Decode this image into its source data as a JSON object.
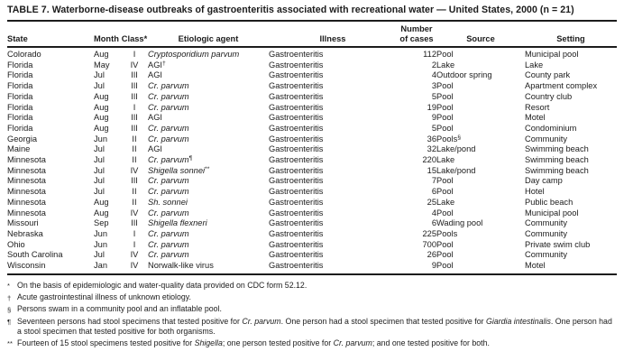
{
  "title": "TABLE 7. Waterborne-disease outbreaks of gastroenteritis associated with recreational water — United States, 2000 (n = 21)",
  "table": {
    "columns": [
      {
        "key": "state",
        "label": "State"
      },
      {
        "key": "month",
        "label": "Month"
      },
      {
        "key": "class",
        "label": "Class*"
      },
      {
        "key": "agent",
        "label": "Etiologic agent"
      },
      {
        "key": "illness",
        "label": "Illness"
      },
      {
        "key": "cases",
        "label": "Number\nof cases"
      },
      {
        "key": "source",
        "label": "Source"
      },
      {
        "key": "setting",
        "label": "Setting"
      }
    ],
    "rows": [
      {
        "state": "Colorado",
        "month": "Aug",
        "class": "I",
        "agent": "Cryptosporidium parvum",
        "agent_italic": true,
        "agent_sup": "",
        "illness": "Gastroenteritis",
        "cases": "112",
        "source": "Pool",
        "source_sup": "",
        "setting": "Municipal pool"
      },
      {
        "state": "Florida",
        "month": "May",
        "class": "IV",
        "agent": "AGI",
        "agent_italic": false,
        "agent_sup": "†",
        "illness": "Gastroenteritis",
        "cases": "2",
        "source": "Lake",
        "source_sup": "",
        "setting": "Lake"
      },
      {
        "state": "Florida",
        "month": "Jul",
        "class": "III",
        "agent": "AGI",
        "agent_italic": false,
        "agent_sup": "",
        "illness": "Gastroenteritis",
        "cases": "4",
        "source": "Outdoor spring",
        "source_sup": "",
        "setting": "County park"
      },
      {
        "state": "Florida",
        "month": "Jul",
        "class": "III",
        "agent": "Cr. parvum",
        "agent_italic": true,
        "agent_sup": "",
        "illness": "Gastroenteritis",
        "cases": "3",
        "source": "Pool",
        "source_sup": "",
        "setting": "Apartment complex"
      },
      {
        "state": "Florida",
        "month": "Aug",
        "class": "III",
        "agent": "Cr. parvum",
        "agent_italic": true,
        "agent_sup": "",
        "illness": "Gastroenteritis",
        "cases": "5",
        "source": "Pool",
        "source_sup": "",
        "setting": "Country club"
      },
      {
        "state": "Florida",
        "month": "Aug",
        "class": "I",
        "agent": "Cr. parvum",
        "agent_italic": true,
        "agent_sup": "",
        "illness": "Gastroenteritis",
        "cases": "19",
        "source": "Pool",
        "source_sup": "",
        "setting": "Resort"
      },
      {
        "state": "Florida",
        "month": "Aug",
        "class": "III",
        "agent": "AGI",
        "agent_italic": false,
        "agent_sup": "",
        "illness": "Gastroenteritis",
        "cases": "9",
        "source": "Pool",
        "source_sup": "",
        "setting": "Motel"
      },
      {
        "state": "Florida",
        "month": "Aug",
        "class": "III",
        "agent": "Cr. parvum",
        "agent_italic": true,
        "agent_sup": "",
        "illness": "Gastroenteritis",
        "cases": "5",
        "source": "Pool",
        "source_sup": "",
        "setting": "Condominium"
      },
      {
        "state": "Georgia",
        "month": "Jun",
        "class": "II",
        "agent": "Cr. parvum",
        "agent_italic": true,
        "agent_sup": "",
        "illness": "Gastroenteritis",
        "cases": "36",
        "source": "Pools",
        "source_sup": "§",
        "setting": "Community"
      },
      {
        "state": "Maine",
        "month": "Jul",
        "class": "II",
        "agent": "AGI",
        "agent_italic": false,
        "agent_sup": "",
        "illness": "Gastroenteritis",
        "cases": "32",
        "source": "Lake/pond",
        "source_sup": "",
        "setting": "Swimming beach"
      },
      {
        "state": "Minnesota",
        "month": "Jul",
        "class": "II",
        "agent": "Cr. parvum",
        "agent_italic": true,
        "agent_sup": "¶",
        "illness": "Gastroenteritis",
        "cases": "220",
        "source": "Lake",
        "source_sup": "",
        "setting": "Swimming beach"
      },
      {
        "state": "Minnesota",
        "month": "Jul",
        "class": "IV",
        "agent": "Shigella sonnei",
        "agent_italic": true,
        "agent_sup": "**",
        "illness": "Gastroenteritis",
        "cases": "15",
        "source": "Lake/pond",
        "source_sup": "",
        "setting": "Swimming beach"
      },
      {
        "state": "Minnesota",
        "month": "Jul",
        "class": "III",
        "agent": "Cr. parvum",
        "agent_italic": true,
        "agent_sup": "",
        "illness": "Gastroenteritis",
        "cases": "7",
        "source": "Pool",
        "source_sup": "",
        "setting": "Day camp"
      },
      {
        "state": "Minnesota",
        "month": "Jul",
        "class": "II",
        "agent": "Cr. parvum",
        "agent_italic": true,
        "agent_sup": "",
        "illness": "Gastroenteritis",
        "cases": "6",
        "source": "Pool",
        "source_sup": "",
        "setting": "Hotel"
      },
      {
        "state": "Minnesota",
        "month": "Aug",
        "class": "II",
        "agent": "Sh. sonnei",
        "agent_italic": true,
        "agent_sup": "",
        "illness": "Gastroenteritis",
        "cases": "25",
        "source": "Lake",
        "source_sup": "",
        "setting": "Public beach"
      },
      {
        "state": "Minnesota",
        "month": "Aug",
        "class": "IV",
        "agent": "Cr. parvum",
        "agent_italic": true,
        "agent_sup": "",
        "illness": "Gastroenteritis",
        "cases": "4",
        "source": "Pool",
        "source_sup": "",
        "setting": "Municipal pool"
      },
      {
        "state": "Missouri",
        "month": "Sep",
        "class": "III",
        "agent": "Shigella flexneri",
        "agent_italic": true,
        "agent_sup": "",
        "illness": "Gastroenteritis",
        "cases": "6",
        "source": "Wading pool",
        "source_sup": "",
        "setting": "Community"
      },
      {
        "state": "Nebraska",
        "month": "Jun",
        "class": "I",
        "agent": "Cr. parvum",
        "agent_italic": true,
        "agent_sup": "",
        "illness": "Gastroenteritis",
        "cases": "225",
        "source": "Pools",
        "source_sup": "",
        "setting": "Community"
      },
      {
        "state": "Ohio",
        "month": "Jun",
        "class": "I",
        "agent": "Cr. parvum",
        "agent_italic": true,
        "agent_sup": "",
        "illness": "Gastroenteritis",
        "cases": "700",
        "source": "Pool",
        "source_sup": "",
        "setting": "Private swim club"
      },
      {
        "state": "South Carolina",
        "month": "Jul",
        "class": "IV",
        "agent": "Cr. parvum",
        "agent_italic": true,
        "agent_sup": "",
        "illness": "Gastroenteritis",
        "cases": "26",
        "source": "Pool",
        "source_sup": "",
        "setting": "Community"
      },
      {
        "state": "Wisconsin",
        "month": "Jan",
        "class": "IV",
        "agent": "Norwalk-like virus",
        "agent_italic": false,
        "agent_sup": "",
        "illness": "Gastroenteritis",
        "cases": "9",
        "source": "Pool",
        "source_sup": "",
        "setting": "Motel"
      }
    ]
  },
  "footnotes": [
    {
      "symbol": "*",
      "segments": [
        {
          "t": "On the basis of epidemiologic and water-quality data provided on CDC form 52.12.",
          "i": false
        }
      ]
    },
    {
      "symbol": "†",
      "segments": [
        {
          "t": "Acute gastrointestinal illness of unknown etiology.",
          "i": false
        }
      ]
    },
    {
      "symbol": "§",
      "segments": [
        {
          "t": "Persons swam in a community pool and an inflatable pool.",
          "i": false
        }
      ]
    },
    {
      "symbol": "¶",
      "segments": [
        {
          "t": "Seventeen persons had stool specimens that tested positive for ",
          "i": false
        },
        {
          "t": "Cr. parvum",
          "i": true
        },
        {
          "t": ". One person had a stool specimen that tested positive for ",
          "i": false
        },
        {
          "t": "Giardia intestinalis",
          "i": true
        },
        {
          "t": ". One person had a stool specimen that tested positive for both organisms.",
          "i": false
        }
      ]
    },
    {
      "symbol": "**",
      "segments": [
        {
          "t": "Fourteen of 15 stool specimens tested positive for ",
          "i": false
        },
        {
          "t": "Shigella",
          "i": true
        },
        {
          "t": "; one person tested positive for ",
          "i": false
        },
        {
          "t": "Cr. parvum",
          "i": true
        },
        {
          "t": "; and one tested positive for both.",
          "i": false
        }
      ]
    }
  ],
  "colors": {
    "text": "#1c1c1c",
    "background": "#ffffff",
    "rule": "#1c1c1c"
  }
}
